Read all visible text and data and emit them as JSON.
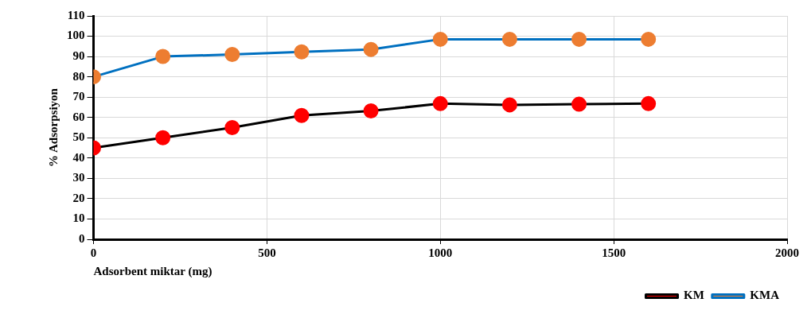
{
  "chart_data": {
    "type": "line",
    "xlabel": "Adsorbent miktar (mg)",
    "ylabel": "% Adsorpsiyon",
    "x": [
      0,
      200,
      400,
      600,
      800,
      1000,
      1200,
      1400,
      1600
    ],
    "series": [
      {
        "name": "KM",
        "color": "#ff0000",
        "values": [
          45,
          50,
          55,
          61,
          63.2,
          66.8,
          66.2,
          66.5,
          66.8
        ]
      },
      {
        "name": "KMA",
        "color": "#ed7d31",
        "values": [
          80,
          90,
          91,
          92.3,
          93.5,
          98.5,
          98.5,
          98.5,
          98.5
        ]
      }
    ],
    "xlim": [
      0,
      2000
    ],
    "xticks": [
      0,
      500,
      1000,
      1500,
      2000
    ],
    "ylim": [
      0,
      110
    ],
    "yticks": [
      0,
      10,
      20,
      30,
      40,
      50,
      60,
      70,
      80,
      90,
      100,
      110
    ],
    "grid": true,
    "legend": "bottom right",
    "marker": "circle",
    "line_style": "solid"
  }
}
